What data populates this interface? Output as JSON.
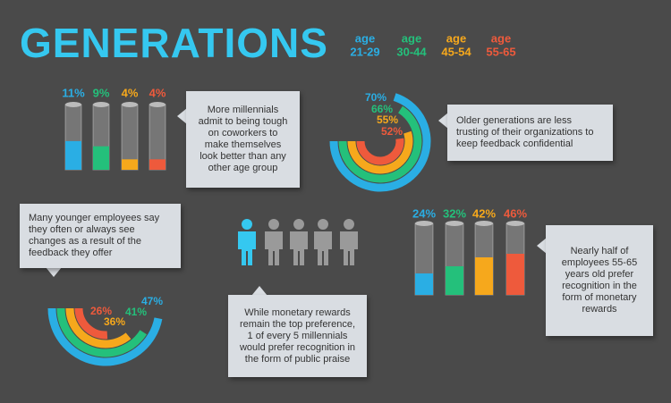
{
  "title": "GENERATIONS",
  "groups": [
    {
      "label": "age",
      "range": "21-29",
      "color": "#2aaee4"
    },
    {
      "label": "age",
      "range": "30-44",
      "color": "#24c07b"
    },
    {
      "label": "age",
      "range": "45-54",
      "color": "#f6a81c"
    },
    {
      "label": "age",
      "range": "55-65",
      "color": "#ee5a3c"
    }
  ],
  "charts": [
    {
      "type": "tubes",
      "values": [
        11,
        9,
        4,
        4
      ],
      "value_labels": [
        "11%",
        "9%",
        "4%",
        "4%"
      ],
      "ylim": [
        0,
        25
      ],
      "text": "More millennials admit to being tough on coworkers to make themselves look better than any other age group"
    },
    {
      "type": "arcs",
      "values": [
        70,
        66,
        55,
        52
      ],
      "value_labels": [
        "70%",
        "66%",
        "55%",
        "52%"
      ],
      "text": "Older generations are less trusting of their organizations to keep feedback confidential"
    },
    {
      "type": "arcs",
      "values": [
        47,
        41,
        36,
        26
      ],
      "value_labels": [
        "47%",
        "41%",
        "36%",
        "26%"
      ],
      "text": "Many younger employees say they often or always see changes as a result of the feedback they offer"
    },
    {
      "type": "people",
      "text": "While monetary rewards remain the top preference, 1 of every 5 millennials would prefer recognition in the form of public praise"
    },
    {
      "type": "tubes",
      "values": [
        24,
        32,
        42,
        46
      ],
      "value_labels": [
        "24%",
        "32%",
        "42%",
        "46%"
      ],
      "ylim": [
        0,
        80
      ],
      "text": "Nearly half of employees 55-65 years old prefer recognition in the form of monetary rewards"
    }
  ]
}
